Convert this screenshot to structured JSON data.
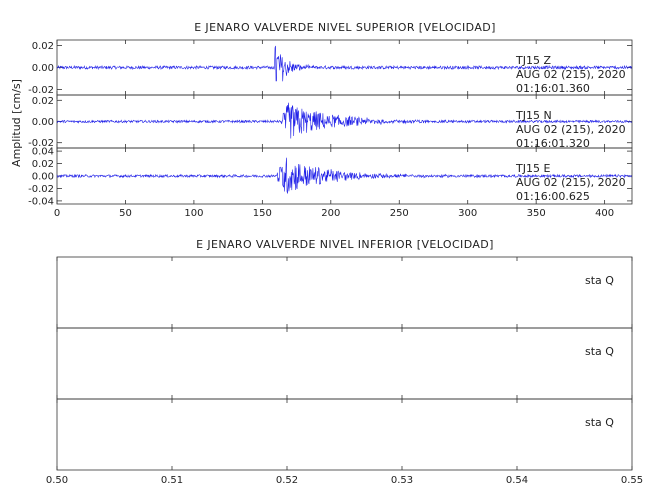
{
  "chart_data": [
    {
      "type": "line",
      "title": "E JENARO VALVERDE NIVEL SUPERIOR [VELOCIDAD]",
      "ylabel": "Amplitud [cm/s]",
      "xlabel": "",
      "xlim": [
        0,
        420
      ],
      "x_ticks": [
        "0",
        "50",
        "100",
        "150",
        "200",
        "250",
        "300",
        "350",
        "400"
      ],
      "x_tick_values": [
        0,
        50,
        100,
        150,
        200,
        250,
        300,
        350,
        400
      ],
      "trace_color": "#1f1fe8",
      "panels": [
        {
          "station": "TJ15",
          "component": "Z",
          "date": "AUG 02 (215), 2020",
          "time": "01:16:01.360",
          "ylim": [
            -0.025,
            0.025
          ],
          "y_ticks": [
            "0.02",
            "0.00",
            "-0.02"
          ],
          "y_tick_values": [
            0.02,
            0.0,
            -0.02
          ],
          "onset_s": 159,
          "peak_amplitude": 0.024,
          "duration_s": 45
        },
        {
          "station": "TJ15",
          "component": "N",
          "date": "AUG 02 (215), 2020",
          "time": "01:16:01.320",
          "ylim": [
            -0.025,
            0.025
          ],
          "y_ticks": [
            "0.02",
            "0.00",
            "-0.02"
          ],
          "y_tick_values": [
            0.02,
            0.0,
            -0.02
          ],
          "onset_s": 163,
          "peak_amplitude": 0.019,
          "duration_s": 70
        },
        {
          "station": "TJ15",
          "component": "E",
          "date": "AUG 02 (215), 2020",
          "time": "01:16:00.625",
          "ylim": [
            -0.045,
            0.045
          ],
          "y_ticks": [
            "0.04",
            "0.02",
            "0.00",
            "-0.02",
            "-0.04"
          ],
          "y_tick_values": [
            0.04,
            0.02,
            0.0,
            -0.02,
            -0.04
          ],
          "onset_s": 160,
          "peak_amplitude": 0.035,
          "duration_s": 65
        }
      ]
    },
    {
      "type": "line",
      "title": "E JENARO VALVERDE NIVEL INFERIOR [VELOCIDAD]",
      "xlabel": "",
      "ylabel": "",
      "xlim": [
        0.5,
        0.55
      ],
      "x_ticks": [
        "0.50",
        "0.51",
        "0.52",
        "0.53",
        "0.54",
        "0.55"
      ],
      "x_tick_values": [
        0.5,
        0.51,
        0.52,
        0.53,
        0.54,
        0.55
      ],
      "panels": [
        {
          "label": "sta  Q"
        },
        {
          "label": "sta  Q"
        },
        {
          "label": "sta  Q"
        }
      ]
    }
  ]
}
